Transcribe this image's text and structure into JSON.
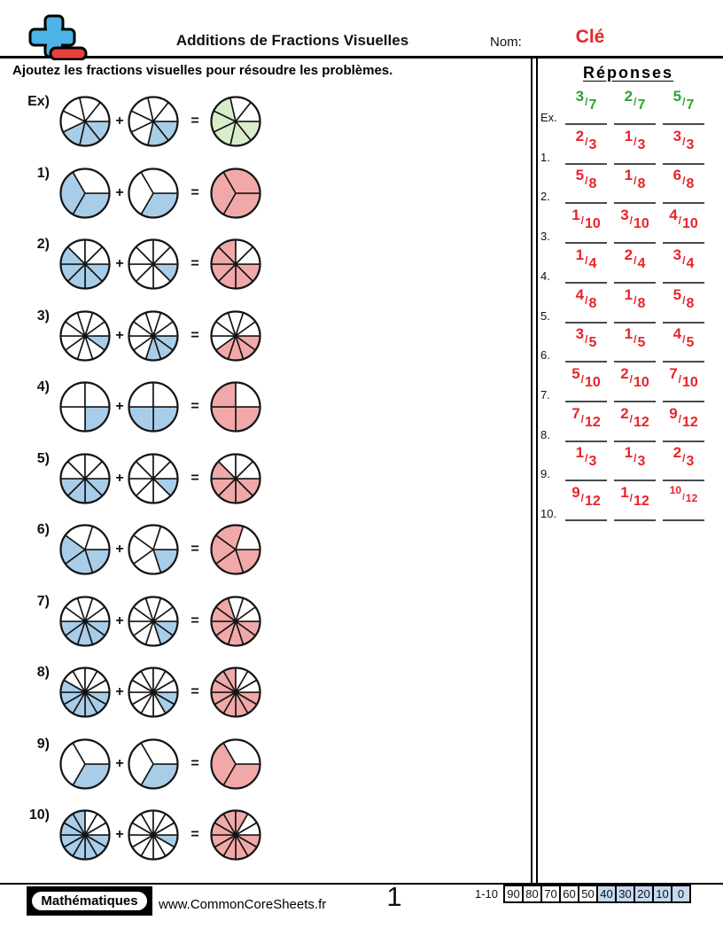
{
  "header": {
    "title": "Additions de Fractions Visuelles",
    "name_label": "Nom:",
    "name_value": "Clé"
  },
  "instruction": "Ajoutez les fractions visuelles pour résoudre les problèmes.",
  "operators": {
    "plus": "+",
    "equals": "="
  },
  "colors": {
    "addend_fill": "#A8CDE9",
    "answer_fill": "#F1A8A8",
    "example_answer_fill": "#D9EDCB",
    "pie_stroke": "#141414",
    "answer_text_red": "#E8242A",
    "answer_text_green": "#2EA435",
    "grade_highlight": "#C5D9F1",
    "logo_blue": "#4EB3E6",
    "logo_red": "#E8403C"
  },
  "problems": [
    {
      "label": "Ex)",
      "slices": 7,
      "a": 3,
      "b": 2,
      "sum": 5,
      "example": true
    },
    {
      "label": "1)",
      "slices": 3,
      "a": 2,
      "b": 1,
      "sum": 3,
      "example": false
    },
    {
      "label": "2)",
      "slices": 8,
      "a": 5,
      "b": 1,
      "sum": 6,
      "example": false
    },
    {
      "label": "3)",
      "slices": 10,
      "a": 1,
      "b": 3,
      "sum": 4,
      "example": false
    },
    {
      "label": "4)",
      "slices": 4,
      "a": 1,
      "b": 2,
      "sum": 3,
      "example": false
    },
    {
      "label": "5)",
      "slices": 8,
      "a": 4,
      "b": 1,
      "sum": 5,
      "example": false
    },
    {
      "label": "6)",
      "slices": 5,
      "a": 3,
      "b": 1,
      "sum": 4,
      "example": false
    },
    {
      "label": "7)",
      "slices": 10,
      "a": 5,
      "b": 2,
      "sum": 7,
      "example": false
    },
    {
      "label": "8)",
      "slices": 12,
      "a": 7,
      "b": 2,
      "sum": 9,
      "example": false
    },
    {
      "label": "9)",
      "slices": 3,
      "a": 1,
      "b": 1,
      "sum": 2,
      "example": false
    },
    {
      "label": "10)",
      "slices": 12,
      "a": 9,
      "b": 1,
      "sum": 10,
      "example": false
    }
  ],
  "answers": {
    "title": "Réponses",
    "rows": [
      {
        "label": "Ex.",
        "color": "green",
        "fractions": [
          [
            "3",
            "7"
          ],
          [
            "2",
            "7"
          ],
          [
            "5",
            "7"
          ]
        ]
      },
      {
        "label": "1.",
        "color": "red",
        "fractions": [
          [
            "2",
            "3"
          ],
          [
            "1",
            "3"
          ],
          [
            "3",
            "3"
          ]
        ]
      },
      {
        "label": "2.",
        "color": "red",
        "fractions": [
          [
            "5",
            "8"
          ],
          [
            "1",
            "8"
          ],
          [
            "6",
            "8"
          ]
        ]
      },
      {
        "label": "3.",
        "color": "red",
        "fractions": [
          [
            "1",
            "10"
          ],
          [
            "3",
            "10"
          ],
          [
            "4",
            "10"
          ]
        ]
      },
      {
        "label": "4.",
        "color": "red",
        "fractions": [
          [
            "1",
            "4"
          ],
          [
            "2",
            "4"
          ],
          [
            "3",
            "4"
          ]
        ]
      },
      {
        "label": "5.",
        "color": "red",
        "fractions": [
          [
            "4",
            "8"
          ],
          [
            "1",
            "8"
          ],
          [
            "5",
            "8"
          ]
        ]
      },
      {
        "label": "6.",
        "color": "red",
        "fractions": [
          [
            "3",
            "5"
          ],
          [
            "1",
            "5"
          ],
          [
            "4",
            "5"
          ]
        ]
      },
      {
        "label": "7.",
        "color": "red",
        "fractions": [
          [
            "5",
            "10"
          ],
          [
            "2",
            "10"
          ],
          [
            "7",
            "10"
          ]
        ]
      },
      {
        "label": "8.",
        "color": "red",
        "fractions": [
          [
            "7",
            "12"
          ],
          [
            "2",
            "12"
          ],
          [
            "9",
            "12"
          ]
        ]
      },
      {
        "label": "9.",
        "color": "red",
        "fractions": [
          [
            "1",
            "3"
          ],
          [
            "1",
            "3"
          ],
          [
            "2",
            "3"
          ]
        ]
      },
      {
        "label": "10.",
        "color": "red",
        "fractions": [
          [
            "9",
            "12"
          ],
          [
            "1",
            "12"
          ],
          [
            "10",
            "12"
          ]
        ]
      }
    ]
  },
  "footer": {
    "brand": "Mathématiques",
    "url": "www.CommonCoreSheets.fr",
    "page_number": "1",
    "grade_scale": {
      "label": "1-10",
      "cells": [
        {
          "value": "90",
          "highlight": false
        },
        {
          "value": "80",
          "highlight": false
        },
        {
          "value": "70",
          "highlight": false
        },
        {
          "value": "60",
          "highlight": false
        },
        {
          "value": "50",
          "highlight": false
        },
        {
          "value": "40",
          "highlight": true
        },
        {
          "value": "30",
          "highlight": true
        },
        {
          "value": "20",
          "highlight": true
        },
        {
          "value": "10",
          "highlight": true
        },
        {
          "value": "0",
          "highlight": true
        }
      ]
    }
  }
}
